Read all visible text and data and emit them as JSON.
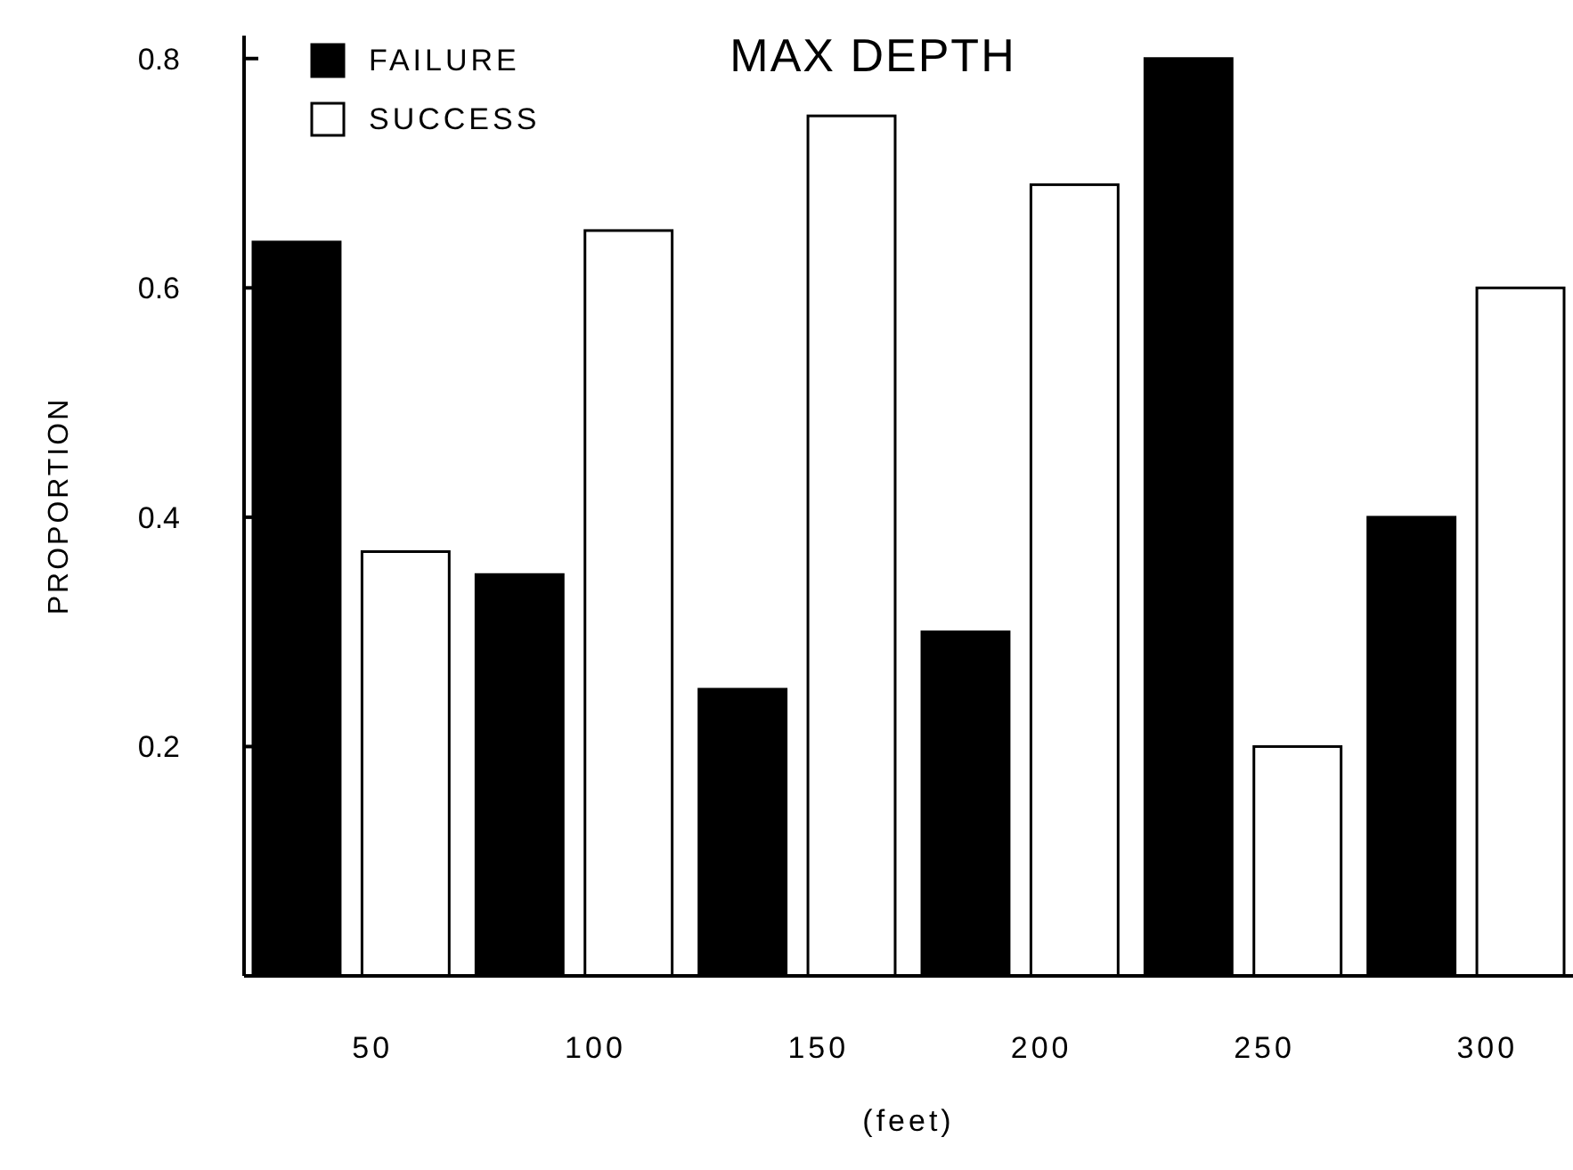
{
  "chart_data": {
    "type": "bar",
    "title": "MAX DEPTH",
    "xlabel": "(feet)",
    "ylabel": "PROPORTION",
    "categories": [
      "50",
      "100",
      "150",
      "200",
      "250",
      "300"
    ],
    "series": [
      {
        "name": "FAILURE",
        "color": "#000000",
        "values": [
          0.64,
          0.35,
          0.25,
          0.3,
          0.8,
          0.4
        ]
      },
      {
        "name": "SUCCESS",
        "color": "#ffffff",
        "values": [
          0.37,
          0.65,
          0.75,
          0.69,
          0.2,
          0.6
        ]
      }
    ],
    "ylim": [
      0,
      0.82
    ],
    "yticks": [
      {
        "value": 0,
        "label": null
      },
      0.2,
      0.4,
      0.6,
      0.8
    ],
    "grid": false,
    "legend": "top left"
  }
}
